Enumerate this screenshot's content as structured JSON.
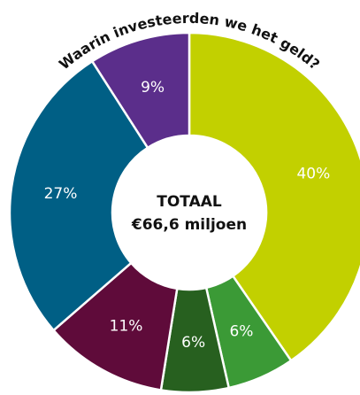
{
  "chart_data": {
    "type": "donut",
    "title": "Waarin investeerden we het geld?",
    "center_label": "TOTAAL",
    "center_value": "€66,6 miljoen",
    "values": [
      40,
      6,
      6,
      11,
      27,
      9
    ],
    "value_labels": [
      "40%",
      "6%",
      "6%",
      "11%",
      "27%",
      "9%"
    ],
    "colors": [
      "#c2d000",
      "#3b9a36",
      "#27601f",
      "#5f0b3a",
      "#005f85",
      "#5b2e8b"
    ]
  }
}
